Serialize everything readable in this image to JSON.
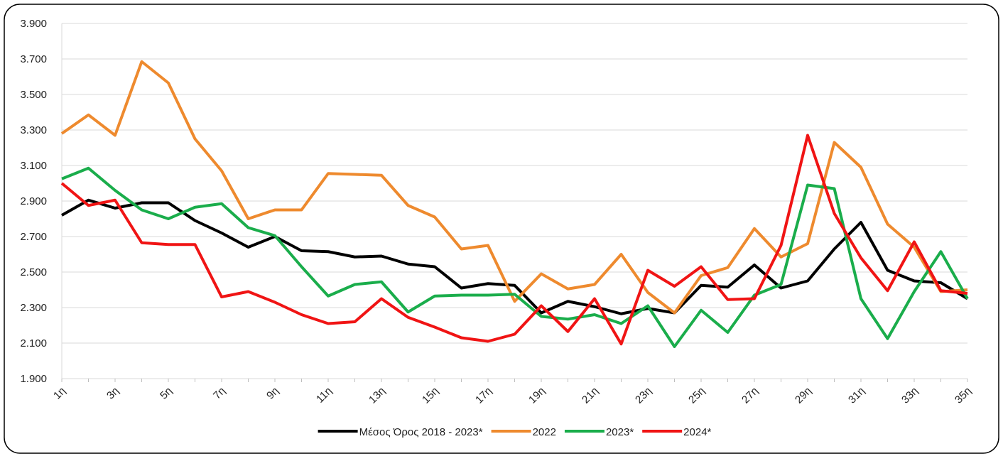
{
  "chart_data": {
    "type": "line",
    "categories": [
      "1η",
      null,
      "3η",
      null,
      "5η",
      null,
      "7η",
      null,
      "9η",
      null,
      "11η",
      null,
      "13η",
      null,
      "15η",
      null,
      "17η",
      null,
      "19η",
      null,
      "21η",
      null,
      "23η",
      null,
      "25η",
      null,
      "27η",
      null,
      "29η",
      null,
      "31η",
      null,
      "33η",
      null,
      "35η"
    ],
    "series": [
      {
        "name": "Μέσος Όρος 2018 - 2023*",
        "color": "#000000",
        "values": [
          2820,
          2905,
          2860,
          2890,
          2890,
          2790,
          2720,
          2640,
          2700,
          2620,
          2615,
          2585,
          2590,
          2545,
          2530,
          2410,
          2435,
          2425,
          2270,
          2335,
          2305,
          2265,
          2295,
          2270,
          2425,
          2415,
          2540,
          2410,
          2450,
          2630,
          2780,
          2510,
          2450,
          2440,
          2350
        ]
      },
      {
        "name": "2022",
        "color": "#ee8a2e",
        "values": [
          3280,
          3385,
          3270,
          3685,
          3565,
          3250,
          3070,
          2800,
          2850,
          2850,
          3055,
          3050,
          3045,
          2875,
          2810,
          2630,
          2650,
          2335,
          2490,
          2405,
          2430,
          2600,
          2385,
          2270,
          2480,
          2525,
          2745,
          2585,
          2660,
          3230,
          3090,
          2770,
          2640,
          2390,
          2400
        ]
      },
      {
        "name": "2023*",
        "color": "#1aad4b",
        "values": [
          3025,
          3085,
          2960,
          2850,
          2800,
          2865,
          2885,
          2750,
          2705,
          2530,
          2365,
          2430,
          2445,
          2275,
          2365,
          2370,
          2370,
          2375,
          2250,
          2235,
          2260,
          2210,
          2310,
          2080,
          2285,
          2160,
          2370,
          2430,
          2990,
          2970,
          2350,
          2125,
          2390,
          2615,
          2350
        ]
      },
      {
        "name": "2024*",
        "color": "#f01414",
        "values": [
          3000,
          2875,
          2905,
          2665,
          2655,
          2655,
          2360,
          2390,
          2330,
          2260,
          2210,
          2220,
          2350,
          2245,
          2190,
          2130,
          2110,
          2150,
          2310,
          2165,
          2350,
          2095,
          2510,
          2420,
          2530,
          2345,
          2350,
          2650,
          3270,
          2830,
          2580,
          2395,
          2670,
          2395,
          2380
        ]
      }
    ],
    "ylim": [
      1900,
      3900
    ],
    "yticks": [
      {
        "value": 1900,
        "label": "1.900"
      },
      {
        "value": 2100,
        "label": "2.100"
      },
      {
        "value": 2300,
        "label": "2.300"
      },
      {
        "value": 2500,
        "label": "2.500"
      },
      {
        "value": 2700,
        "label": "2.700"
      },
      {
        "value": 2900,
        "label": "2.900"
      },
      {
        "value": 3100,
        "label": "3.100"
      },
      {
        "value": 3300,
        "label": "3.300"
      },
      {
        "value": 3500,
        "label": "3.500"
      },
      {
        "value": 3700,
        "label": "3.700"
      },
      {
        "value": 3900,
        "label": "3.900"
      }
    ],
    "grid": true,
    "legend": "bottom"
  }
}
